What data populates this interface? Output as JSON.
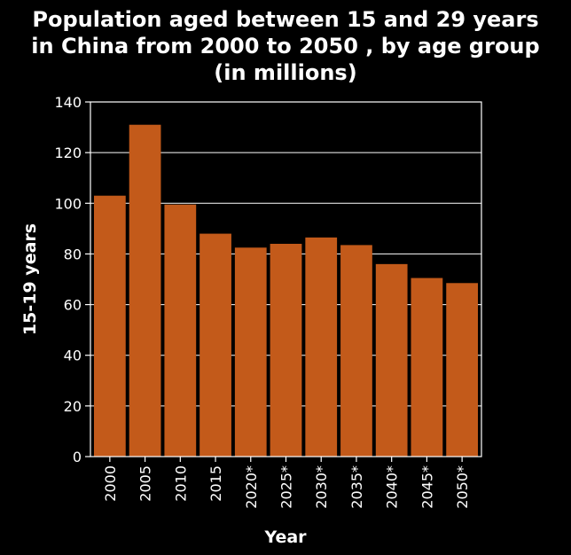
{
  "chart_data": {
    "type": "bar",
    "title_lines": [
      "Population aged between 15 and 29 years",
      "in China from 2000 to 2050 , by age group",
      "(in millions)"
    ],
    "xlabel": "Year",
    "ylabel": "15-19 years",
    "categories": [
      "2000",
      "2005",
      "2010",
      "2015",
      "2020*",
      "2025*",
      "2030*",
      "2035*",
      "2040*",
      "2045*",
      "2050*"
    ],
    "values": [
      103,
      131,
      99.5,
      88,
      82.5,
      84,
      86.5,
      83.5,
      76,
      70.5,
      68.5
    ],
    "ylim": [
      0,
      140
    ],
    "yticks": [
      0,
      20,
      40,
      60,
      80,
      100,
      120,
      140
    ],
    "grid": true,
    "bar_color": "#c35a1a",
    "background": "#000000"
  }
}
